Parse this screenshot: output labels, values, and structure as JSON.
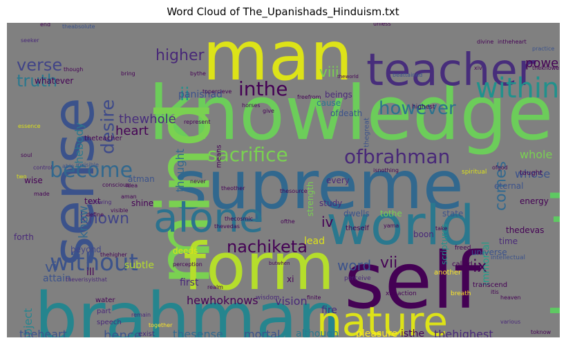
{
  "chart_data": {
    "type": "wordcloud",
    "title": "Word Cloud of The_Upanishads_Hinduism.txt",
    "background": "#808080",
    "palette": "viridis",
    "words": [
      {
        "text": "knowledge",
        "weight": 92,
        "color": "#6ccd5a"
      },
      {
        "text": "supreme",
        "weight": 92,
        "color": "#31688e"
      },
      {
        "text": "mind",
        "weight": 90,
        "color": "#7ad151",
        "vertical": true
      },
      {
        "text": "brahman",
        "weight": 88,
        "color": "#25858e"
      },
      {
        "text": "self",
        "weight": 88,
        "color": "#440154"
      },
      {
        "text": "man",
        "weight": 82,
        "color": "#dde318"
      },
      {
        "text": "form",
        "weight": 80,
        "color": "#b5de2b"
      },
      {
        "text": "sense",
        "weight": 78,
        "color": "#3b528b",
        "vertical": true
      },
      {
        "text": "world",
        "weight": 76,
        "color": "#2a788e"
      },
      {
        "text": "death",
        "weight": 74,
        "color": "#5ec962",
        "vertical": true
      },
      {
        "text": "nature",
        "weight": 62,
        "color": "#dde318"
      },
      {
        "text": "teacher",
        "weight": 58,
        "color": "#472d7b"
      },
      {
        "text": "alone",
        "weight": 52,
        "color": "#2c728e"
      },
      {
        "text": "within",
        "weight": 38,
        "color": "#21918c"
      },
      {
        "text": "without",
        "weight": 34,
        "color": "#3b528b"
      },
      {
        "text": "become",
        "weight": 30,
        "color": "#31688e"
      },
      {
        "text": "sacrifice",
        "weight": 30,
        "color": "#7ad151"
      },
      {
        "text": "ofbrahman",
        "weight": 30,
        "color": "#482878"
      },
      {
        "text": "inthe",
        "weight": 28,
        "color": "#440154"
      },
      {
        "text": "however",
        "weight": 26,
        "color": "#2c728e"
      },
      {
        "text": "desire",
        "weight": 26,
        "color": "#3e4a89",
        "vertical": true
      },
      {
        "text": "nachiketa",
        "weight": 24,
        "color": "#440154"
      },
      {
        "text": "truth",
        "weight": 24,
        "color": "#2a788e"
      },
      {
        "text": "verse",
        "weight": 24,
        "color": "#414487"
      },
      {
        "text": "higher",
        "weight": 22,
        "color": "#482878"
      },
      {
        "text": "known",
        "weight": 22,
        "color": "#414487"
      },
      {
        "text": "comes",
        "weight": 22,
        "color": "#31688e",
        "vertical": true
      },
      {
        "text": "thatwhich",
        "weight": 20,
        "color": "#3b528b",
        "vertical": true
      },
      {
        "text": "theatman",
        "weight": 20,
        "color": "#1f9e89",
        "vertical": true
      },
      {
        "text": "ix",
        "weight": 22,
        "color": "#440154"
      },
      {
        "text": "vii",
        "weight": 20,
        "color": "#440154"
      },
      {
        "text": "iv",
        "weight": 20,
        "color": "#440154"
      },
      {
        "text": "vi",
        "weight": 20,
        "color": "#3b528b"
      },
      {
        "text": "ii",
        "weight": 22,
        "color": "#21918c"
      },
      {
        "text": "viii",
        "weight": 20,
        "color": "#7ad151"
      },
      {
        "text": "word",
        "weight": 20,
        "color": "#3b528b"
      },
      {
        "text": "power",
        "weight": 18,
        "color": "#440154"
      },
      {
        "text": "heart",
        "weight": 18,
        "color": "#440154"
      },
      {
        "text": "thewhole",
        "weight": 18,
        "color": "#472d7b"
      },
      {
        "text": "whole",
        "weight": 16,
        "color": "#7ad151"
      },
      {
        "text": "whose",
        "weight": 16,
        "color": "#3b528b"
      },
      {
        "text": "thebody",
        "weight": 16,
        "color": "#2a788e",
        "vertical": true
      },
      {
        "text": "know",
        "weight": 18,
        "color": "#31688e",
        "vertical": true
      },
      {
        "text": "thought",
        "weight": 16,
        "color": "#31688e",
        "vertical": true
      },
      {
        "text": "hewhoknows",
        "weight": 16,
        "color": "#440154"
      },
      {
        "text": "vision",
        "weight": 16,
        "color": "#482878"
      },
      {
        "text": "object",
        "weight": 16,
        "color": "#25858e",
        "vertical": true
      },
      {
        "text": "thesense",
        "weight": 16,
        "color": "#31688e"
      },
      {
        "text": "thehighest",
        "weight": 16,
        "color": "#482878"
      },
      {
        "text": "theheart",
        "weight": 16,
        "color": "#3b528b"
      },
      {
        "text": "hence",
        "weight": 18,
        "color": "#3b528b"
      },
      {
        "text": "mortal",
        "weight": 16,
        "color": "#3b528b"
      },
      {
        "text": "although",
        "weight": 14,
        "color": "#2a788e"
      },
      {
        "text": "pleasure",
        "weight": 14,
        "color": "#fde725"
      },
      {
        "text": "isthe",
        "weight": 14,
        "color": "#440154"
      },
      {
        "text": "immortal",
        "weight": 14,
        "color": "#1f9e89",
        "vertical": true
      },
      {
        "text": "attain",
        "weight": 14,
        "color": "#3b528b"
      },
      {
        "text": "first",
        "weight": 14,
        "color": "#482878"
      },
      {
        "text": "subtle",
        "weight": 14,
        "color": "#b5de2b"
      },
      {
        "text": "ill",
        "weight": 14,
        "color": "#440154"
      },
      {
        "text": "lead",
        "weight": 14,
        "color": "#dde318"
      },
      {
        "text": "beyond",
        "weight": 12,
        "color": "#414487"
      },
      {
        "text": "xi",
        "weight": 12,
        "color": "#440154"
      },
      {
        "text": "fire",
        "weight": 14,
        "color": "#482878"
      },
      {
        "text": "time",
        "weight": 12,
        "color": "#482878"
      },
      {
        "text": "eternal",
        "weight": 12,
        "color": "#3b528b"
      },
      {
        "text": "energy",
        "weight": 12,
        "color": "#440154"
      },
      {
        "text": "dwells",
        "weight": 12,
        "color": "#3b528b"
      },
      {
        "text": "tothe",
        "weight": 12,
        "color": "#7ad151"
      },
      {
        "text": "state",
        "weight": 12,
        "color": "#3b528b"
      },
      {
        "text": "thedevas",
        "weight": 12,
        "color": "#440154"
      },
      {
        "text": "universe",
        "weight": 12,
        "color": "#3b528b"
      },
      {
        "text": "deeds",
        "weight": 12,
        "color": "#dde318"
      },
      {
        "text": "boon",
        "weight": 12,
        "color": "#482878"
      },
      {
        "text": "panishad",
        "weight": 14,
        "color": "#3b528b"
      },
      {
        "text": "beings",
        "weight": 12,
        "color": "#482878"
      },
      {
        "text": "cause",
        "weight": 12,
        "color": "#2a788e"
      },
      {
        "text": "ofdeath",
        "weight": 12,
        "color": "#3b528b"
      },
      {
        "text": "atman",
        "weight": 12,
        "color": "#3b528b"
      },
      {
        "text": "text",
        "weight": 12,
        "color": "#440154"
      },
      {
        "text": "shine",
        "weight": 12,
        "color": "#440154"
      },
      {
        "text": "forth",
        "weight": 12,
        "color": "#482878"
      },
      {
        "text": "wise",
        "weight": 12,
        "color": "#440154"
      },
      {
        "text": "every",
        "weight": 12,
        "color": "#482878"
      },
      {
        "text": "study",
        "weight": 12,
        "color": "#482878"
      },
      {
        "text": "strength",
        "weight": 12,
        "color": "#7ad151",
        "vertical": true
      },
      {
        "text": "scriptures",
        "weight": 12,
        "color": "#21918c",
        "vertical": true
      },
      {
        "text": "whatever",
        "weight": 12,
        "color": "#440154"
      },
      {
        "text": "part",
        "weight": 10,
        "color": "#482878"
      },
      {
        "text": "exist",
        "weight": 10,
        "color": "#482878"
      },
      {
        "text": "speech",
        "weight": 10,
        "color": "#482878"
      },
      {
        "text": "water",
        "weight": 10,
        "color": "#440154"
      },
      {
        "text": "means",
        "weight": 10,
        "color": "#440154",
        "vertical": true
      },
      {
        "text": "thegreat",
        "weight": 10,
        "color": "#3b528b",
        "vertical": true
      },
      {
        "text": "theteacher",
        "weight": 10,
        "color": "#440154"
      },
      {
        "text": "theself",
        "weight": 10,
        "color": "#440154"
      },
      {
        "text": "called",
        "weight": 10,
        "color": "#440154"
      },
      {
        "text": "another",
        "weight": 10,
        "color": "#fde725"
      },
      {
        "text": "transcend",
        "weight": 10,
        "color": "#440154"
      },
      {
        "text": "intellectual",
        "weight": 9,
        "color": "#3b528b"
      },
      {
        "text": "taught",
        "weight": 10,
        "color": "#440154"
      },
      {
        "text": "spiritual",
        "weight": 9,
        "color": "#dde318"
      },
      {
        "text": "highest",
        "weight": 9,
        "color": "#440154"
      },
      {
        "text": "isnothing",
        "weight": 8,
        "color": "#440154"
      },
      {
        "text": "perceive",
        "weight": 9,
        "color": "#482878"
      },
      {
        "text": "wisdom",
        "weight": 9,
        "color": "#482878"
      },
      {
        "text": "freed",
        "weight": 9,
        "color": "#440154"
      },
      {
        "text": "breath",
        "weight": 9,
        "color": "#fde725"
      },
      {
        "text": "xiii",
        "weight": 9,
        "color": "#440154"
      },
      {
        "text": "action",
        "weight": 9,
        "color": "#440154"
      },
      {
        "text": "essence",
        "weight": 8,
        "color": "#dde318"
      },
      {
        "text": "soul",
        "weight": 8,
        "color": "#440154"
      },
      {
        "text": "control",
        "weight": 8,
        "color": "#482878"
      },
      {
        "text": "invisible",
        "weight": 8,
        "color": "#3b528b"
      },
      {
        "text": "two",
        "weight": 8,
        "color": "#dde318"
      },
      {
        "text": "able",
        "weight": 8,
        "color": "#3b528b"
      },
      {
        "text": "realm",
        "weight": 8,
        "color": "#440154"
      },
      {
        "text": "theother",
        "weight": 8,
        "color": "#440154"
      },
      {
        "text": "thesource",
        "weight": 8,
        "color": "#440154"
      },
      {
        "text": "thecosmic",
        "weight": 8,
        "color": "#440154"
      },
      {
        "text": "ofthe",
        "weight": 8,
        "color": "#440154"
      },
      {
        "text": "ofgod",
        "weight": 8,
        "color": "#440154"
      },
      {
        "text": "yama",
        "weight": 8,
        "color": "#440154"
      },
      {
        "text": "intheheart",
        "weight": 8,
        "color": "#440154"
      },
      {
        "text": "divine",
        "weight": 8,
        "color": "#440154"
      },
      {
        "text": "practice",
        "weight": 8,
        "color": "#3b528b"
      },
      {
        "text": "theknower",
        "weight": 8,
        "color": "#440154"
      },
      {
        "text": "xiv",
        "weight": 8,
        "color": "#440154"
      },
      {
        "text": "seeker",
        "weight": 8,
        "color": "#482878"
      },
      {
        "text": "theabsolute",
        "weight": 8,
        "color": "#3b528b"
      },
      {
        "text": "toknow",
        "weight": 8,
        "color": "#440154"
      },
      {
        "text": "various",
        "weight": 8,
        "color": "#482878"
      },
      {
        "text": "heaven",
        "weight": 8,
        "color": "#440154"
      },
      {
        "text": "thehigher",
        "weight": 8,
        "color": "#440154"
      },
      {
        "text": "theverisyisthat",
        "weight": 8,
        "color": "#482878"
      },
      {
        "text": "together",
        "weight": 8,
        "color": "#fde725"
      },
      {
        "text": "remain",
        "weight": 8,
        "color": "#482878"
      },
      {
        "text": "knowing",
        "weight": 8,
        "color": "#482878"
      },
      {
        "text": "define",
        "weight": 8,
        "color": "#440154"
      },
      {
        "text": "visible",
        "weight": 8,
        "color": "#440154"
      },
      {
        "text": "conscious",
        "weight": 8,
        "color": "#440154"
      },
      {
        "text": "never",
        "weight": 8,
        "color": "#440154"
      },
      {
        "text": "give",
        "weight": 8,
        "color": "#440154"
      },
      {
        "text": "represent",
        "weight": 8,
        "color": "#440154"
      },
      {
        "text": "topercieve",
        "weight": 8,
        "color": "#440154"
      },
      {
        "text": "horses",
        "weight": 8,
        "color": "#440154"
      },
      {
        "text": "beattained",
        "weight": 8,
        "color": "#3b528b"
      },
      {
        "text": "freefrom",
        "weight": 8,
        "color": "#440154"
      },
      {
        "text": "theworld",
        "weight": 7,
        "color": "#440154"
      },
      {
        "text": "bythe",
        "weight": 8,
        "color": "#440154"
      },
      {
        "text": "bring",
        "weight": 8,
        "color": "#440154"
      },
      {
        "text": "though",
        "weight": 8,
        "color": "#440154"
      },
      {
        "text": "unless",
        "weight": 8,
        "color": "#440154"
      },
      {
        "text": "end",
        "weight": 8,
        "color": "#440154"
      },
      {
        "text": "may",
        "weight": 8,
        "color": "#440154"
      },
      {
        "text": "made",
        "weight": 8,
        "color": "#440154"
      },
      {
        "text": "aman",
        "weight": 8,
        "color": "#440154"
      },
      {
        "text": "idea",
        "weight": 8,
        "color": "#440154"
      },
      {
        "text": "thevedas",
        "weight": 8,
        "color": "#440154"
      },
      {
        "text": "perception",
        "weight": 8,
        "color": "#440154"
      },
      {
        "text": "butwhen",
        "weight": 7,
        "color": "#440154"
      },
      {
        "text": "finite",
        "weight": 8,
        "color": "#440154"
      },
      {
        "text": "take",
        "weight": 8,
        "color": "#440154"
      },
      {
        "text": "itis",
        "weight": 8,
        "color": "#440154"
      }
    ]
  }
}
